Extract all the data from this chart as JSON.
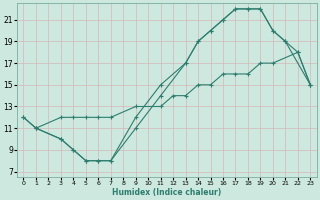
{
  "xlabel": "Humidex (Indice chaleur)",
  "xlim": [
    -0.5,
    23.5
  ],
  "ylim": [
    6.5,
    22.5
  ],
  "yticks": [
    7,
    9,
    11,
    13,
    15,
    17,
    19,
    21
  ],
  "xticks": [
    0,
    1,
    2,
    3,
    4,
    5,
    6,
    7,
    8,
    9,
    10,
    11,
    12,
    13,
    14,
    15,
    16,
    17,
    18,
    19,
    20,
    21,
    22,
    23
  ],
  "line_color": "#2e7d6e",
  "bg_color": "#cce8df",
  "grid_color": "#b0d8cc",
  "line1_x": [
    0,
    1,
    3,
    4,
    5,
    6,
    7,
    9,
    11,
    12,
    13,
    14,
    15,
    16,
    17,
    18,
    19,
    20,
    22,
    23
  ],
  "line1_y": [
    12,
    11,
    12,
    12,
    12,
    12,
    12,
    13,
    13,
    14,
    14,
    15,
    15,
    16,
    16,
    16,
    17,
    17,
    18,
    15
  ],
  "line2_x": [
    0,
    1,
    3,
    4,
    5,
    6,
    7,
    9,
    11,
    13,
    14,
    15,
    16,
    17,
    18,
    19,
    20,
    21,
    22,
    23
  ],
  "line2_y": [
    12,
    11,
    10,
    9,
    8,
    8,
    8,
    11,
    14,
    17,
    19,
    20,
    21,
    22,
    22,
    22,
    20,
    19,
    18,
    15
  ],
  "line3_x": [
    1,
    3,
    4,
    5,
    6,
    7,
    9,
    11,
    13,
    14,
    15,
    16,
    17,
    18,
    19,
    20,
    21,
    23
  ],
  "line3_y": [
    11,
    10,
    9,
    8,
    8,
    8,
    12,
    15,
    17,
    19,
    20,
    21,
    22,
    22,
    22,
    20,
    19,
    15
  ]
}
